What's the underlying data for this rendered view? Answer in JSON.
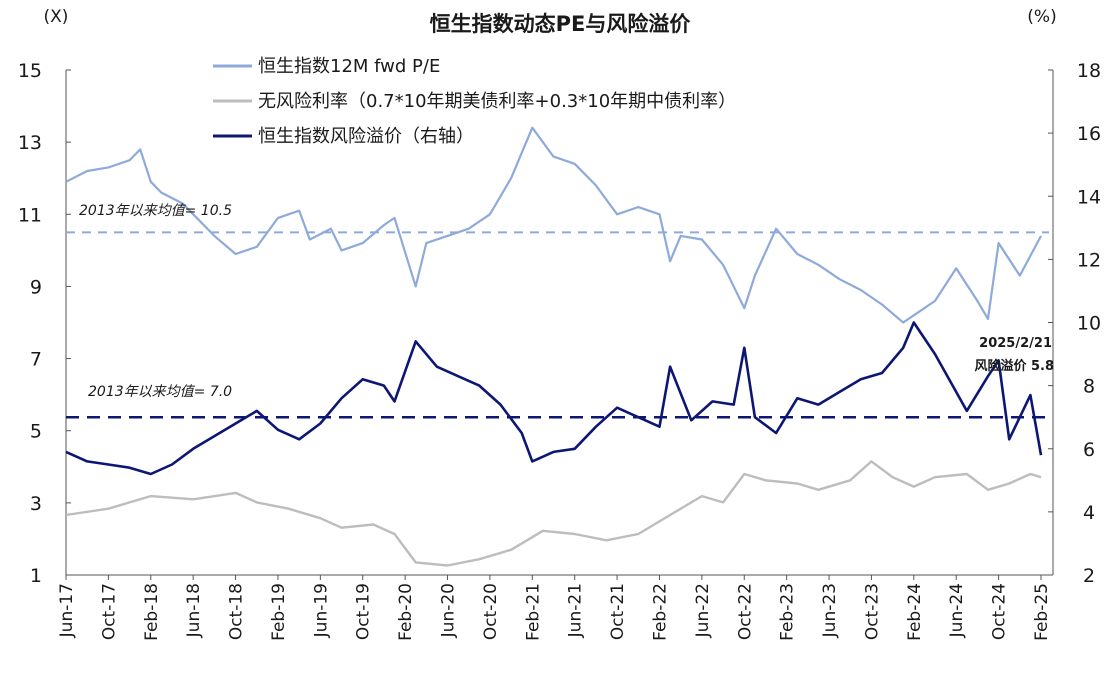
{
  "chart_data": {
    "type": "line",
    "title": "恒生指数动态PE与风险溢价",
    "left_unit": "(X)",
    "right_unit": "(%)",
    "ylim_left": [
      1,
      15
    ],
    "ylim_right": [
      2,
      18
    ],
    "yticks_left": [
      "1",
      "3",
      "5",
      "7",
      "9",
      "11",
      "13",
      "15"
    ],
    "yticks_right": [
      "2",
      "4",
      "6",
      "8",
      "10",
      "12",
      "14",
      "16",
      "18"
    ],
    "x_tick_labels": [
      "Jun-17",
      "Oct-17",
      "Feb-18",
      "Jun-18",
      "Oct-18",
      "Feb-19",
      "Jun-19",
      "Oct-19",
      "Feb-20",
      "Jun-20",
      "Oct-20",
      "Feb-21",
      "Jun-21",
      "Oct-21",
      "Feb-22",
      "Jun-22",
      "Oct-22",
      "Feb-23",
      "Jun-23",
      "Oct-23",
      "Feb-24",
      "Jun-24",
      "Oct-24",
      "Feb-25"
    ],
    "legend_position": "top-left",
    "grid": false,
    "series": [
      {
        "name": "恒生指数12M fwd P/E",
        "axis": "left",
        "color": "#8eaadb",
        "x": [
          "2017-06",
          "2017-08",
          "2017-10",
          "2017-12",
          "2018-01",
          "2018-02",
          "2018-03",
          "2018-05",
          "2018-06",
          "2018-08",
          "2018-10",
          "2018-12",
          "2019-02",
          "2019-04",
          "2019-05",
          "2019-07",
          "2019-08",
          "2019-10",
          "2019-12",
          "2020-01",
          "2020-03",
          "2020-04",
          "2020-06",
          "2020-08",
          "2020-10",
          "2020-12",
          "2021-02",
          "2021-04",
          "2021-06",
          "2021-08",
          "2021-10",
          "2021-12",
          "2022-02",
          "2022-03",
          "2022-04",
          "2022-06",
          "2022-08",
          "2022-10",
          "2022-11",
          "2023-01",
          "2023-03",
          "2023-05",
          "2023-07",
          "2023-09",
          "2023-11",
          "2024-01",
          "2024-02",
          "2024-04",
          "2024-06",
          "2024-08",
          "2024-09",
          "2024-10",
          "2024-12",
          "2025-02"
        ],
        "values": [
          11.9,
          12.2,
          12.3,
          12.5,
          12.8,
          11.9,
          11.6,
          11.3,
          11.0,
          10.4,
          9.9,
          10.1,
          10.9,
          11.1,
          10.3,
          10.6,
          10.0,
          10.2,
          10.7,
          10.9,
          9.0,
          10.2,
          10.4,
          10.6,
          11.0,
          12.0,
          13.4,
          12.6,
          12.4,
          11.8,
          11.0,
          11.2,
          11.0,
          9.7,
          10.4,
          10.3,
          9.6,
          8.4,
          9.3,
          10.6,
          9.9,
          9.6,
          9.2,
          8.9,
          8.5,
          8.0,
          8.2,
          8.6,
          9.5,
          8.6,
          8.1,
          10.2,
          9.3,
          10.4
        ]
      },
      {
        "name": "无风险利率（0.7*10年期美债利率+0.3*10年期中债利率）",
        "axis": "right",
        "color": "#bdbdbd",
        "x": [
          "2017-06",
          "2017-10",
          "2018-02",
          "2018-06",
          "2018-10",
          "2018-12",
          "2019-03",
          "2019-06",
          "2019-08",
          "2019-11",
          "2020-01",
          "2020-03",
          "2020-06",
          "2020-09",
          "2020-12",
          "2021-03",
          "2021-06",
          "2021-09",
          "2021-12",
          "2022-03",
          "2022-06",
          "2022-08",
          "2022-10",
          "2022-12",
          "2023-03",
          "2023-05",
          "2023-08",
          "2023-10",
          "2023-12",
          "2024-02",
          "2024-04",
          "2024-07",
          "2024-09",
          "2024-11",
          "2025-01",
          "2025-02"
        ],
        "values": [
          3.9,
          4.1,
          4.5,
          4.4,
          4.6,
          4.3,
          4.1,
          3.8,
          3.5,
          3.6,
          3.3,
          2.4,
          2.3,
          2.5,
          2.8,
          3.4,
          3.3,
          3.1,
          3.3,
          3.9,
          4.5,
          4.3,
          5.2,
          5.0,
          4.9,
          4.7,
          5.0,
          5.6,
          5.1,
          4.8,
          5.1,
          5.2,
          4.7,
          4.9,
          5.2,
          5.1
        ]
      },
      {
        "name": "恒生指数风险溢价（右轴）",
        "axis": "right",
        "color": "#0d1773",
        "x": [
          "2017-06",
          "2017-08",
          "2017-10",
          "2017-12",
          "2018-02",
          "2018-04",
          "2018-06",
          "2018-08",
          "2018-10",
          "2018-12",
          "2019-02",
          "2019-04",
          "2019-06",
          "2019-08",
          "2019-10",
          "2019-12",
          "2020-01",
          "2020-03",
          "2020-05",
          "2020-07",
          "2020-09",
          "2020-11",
          "2021-01",
          "2021-02",
          "2021-04",
          "2021-06",
          "2021-08",
          "2021-10",
          "2021-12",
          "2022-02",
          "2022-03",
          "2022-05",
          "2022-07",
          "2022-09",
          "2022-10",
          "2022-11",
          "2023-01",
          "2023-03",
          "2023-05",
          "2023-07",
          "2023-09",
          "2023-11",
          "2024-01",
          "2024-02",
          "2024-04",
          "2024-05",
          "2024-07",
          "2024-09",
          "2024-10",
          "2024-11",
          "2025-01",
          "2025-02"
        ],
        "values": [
          5.9,
          5.6,
          5.5,
          5.4,
          5.2,
          5.5,
          6.0,
          6.4,
          6.8,
          7.2,
          6.6,
          6.3,
          6.8,
          7.6,
          8.2,
          8.0,
          7.5,
          9.4,
          8.6,
          8.3,
          8.0,
          7.4,
          6.5,
          5.6,
          5.9,
          6.0,
          6.7,
          7.3,
          7.0,
          6.7,
          8.6,
          6.9,
          7.5,
          7.4,
          9.2,
          7.0,
          6.5,
          7.6,
          7.4,
          7.8,
          8.2,
          8.4,
          9.2,
          10.0,
          9.0,
          8.4,
          7.2,
          8.3,
          8.8,
          6.3,
          7.7,
          5.8
        ]
      }
    ],
    "reference_lines": [
      {
        "axis": "left",
        "value": 10.5,
        "label": "2013年以来均值= 10.5",
        "style": "dashed",
        "color": "#8eaadb"
      },
      {
        "axis": "right",
        "value": 7.0,
        "label": "2013年以来均值= 7.0",
        "style": "dashed",
        "color": "#0d1773"
      }
    ],
    "annotations": [
      {
        "text": "2025/2/21",
        "x": "2025-02"
      },
      {
        "text": "风险溢价 5.8",
        "x": "2025-02"
      }
    ]
  }
}
